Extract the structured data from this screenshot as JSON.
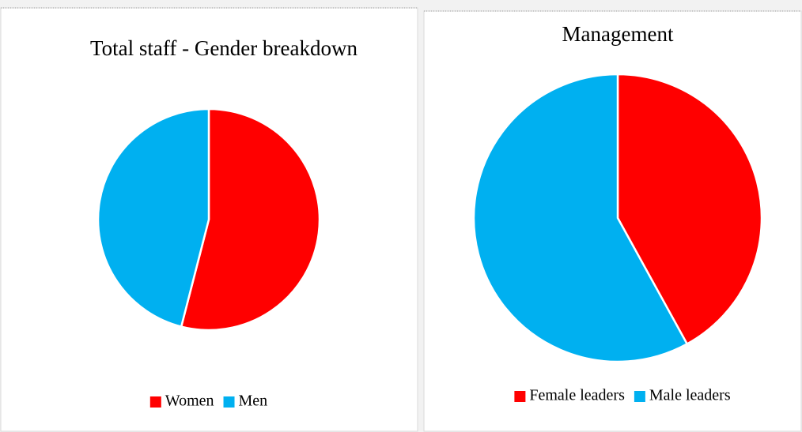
{
  "chart_data": [
    {
      "type": "pie",
      "title": "Total staff - Gender breakdown",
      "categories": [
        "Women",
        "Men"
      ],
      "values": [
        54,
        46
      ],
      "colors": [
        "#ff0000",
        "#00b0f0"
      ],
      "legend": "bottom"
    },
    {
      "type": "pie",
      "title": "Management",
      "categories": [
        "Female leaders",
        "Male leaders"
      ],
      "values": [
        42,
        58
      ],
      "colors": [
        "#ff0000",
        "#00b0f0"
      ],
      "legend": "bottom"
    }
  ]
}
